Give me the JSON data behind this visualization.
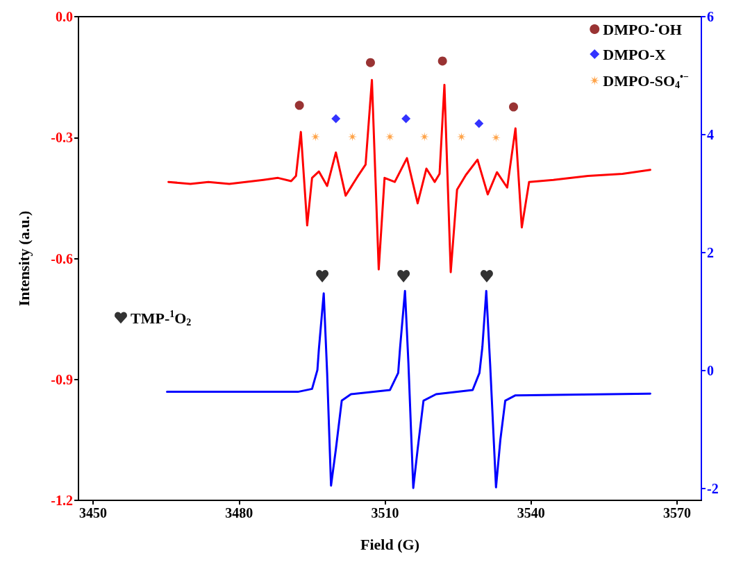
{
  "chart_data": {
    "type": "line",
    "xlabel": "Field (G)",
    "ylabel": "Intensity (a.u.)",
    "xlim": [
      3447,
      3575
    ],
    "xticks": [
      3450,
      3480,
      3510,
      3540,
      3570
    ],
    "ylim": [
      -1.2,
      0
    ],
    "yticks": [
      {
        "value": 0,
        "label": "0.0"
      },
      -0.3,
      -0.6,
      -0.9,
      -1.2
    ],
    "y2lim": [
      -2.2,
      6
    ],
    "y2ticks": [
      -2,
      0,
      2,
      4,
      6
    ],
    "grid": false,
    "legend": "top right",
    "marker": "none",
    "series": [
      {
        "color": "#ff0000",
        "x": [
          3465.5,
          3470,
          3473.7,
          3478,
          3485.0,
          3488,
          3490.7,
          3491.7,
          3492.7,
          3494.0,
          3495.0,
          3496.4,
          3498.1,
          3499.9,
          3501.9,
          3504.5,
          3506.0,
          3507.3,
          3508.7,
          3509.9,
          3512.0,
          3514.5,
          3516.7,
          3518.5,
          3520.2,
          3521.2,
          3522.2,
          3523.5,
          3524.8,
          3526.6,
          3529.0,
          3531.1,
          3533.0,
          3535.1,
          3536.8,
          3538.1,
          3539.6,
          3544.6,
          3551.7,
          3558.8,
          3564.5
        ],
        "values": [
          -0.41,
          -0.415,
          -0.41,
          -0.415,
          -0.405,
          -0.4,
          -0.408,
          -0.395,
          -0.286,
          -0.518,
          -0.4,
          -0.384,
          -0.42,
          -0.337,
          -0.444,
          -0.394,
          -0.367,
          -0.157,
          -0.627,
          -0.4,
          -0.41,
          -0.351,
          -0.463,
          -0.377,
          -0.41,
          -0.39,
          -0.169,
          -0.634,
          -0.429,
          -0.393,
          -0.355,
          -0.441,
          -0.386,
          -0.424,
          -0.277,
          -0.523,
          -0.41,
          -0.405,
          -0.395,
          -0.39,
          -0.38
        ]
      },
      {
        "color": "#0000ff",
        "axis": "y2",
        "x": [
          3465.2,
          3492.1,
          3495.0,
          3496.1,
          3496.4,
          3497.4,
          3498.1,
          3498.9,
          3499.9,
          3501.1,
          3503.0,
          3511.0,
          3512.7,
          3513.1,
          3514.1,
          3514.8,
          3515.8,
          3516.7,
          3517.9,
          3520.5,
          3528.0,
          3529.4,
          3530.0,
          3530.8,
          3531.6,
          3532.8,
          3533.7,
          3534.7,
          3536.8,
          3564.5
        ],
        "values": [
          -0.36,
          -0.36,
          -0.31,
          0.01,
          0.36,
          1.31,
          -0.04,
          -1.95,
          -1.33,
          -0.51,
          -0.4,
          -0.33,
          -0.04,
          0.4,
          1.35,
          0.13,
          -1.99,
          -1.33,
          -0.51,
          -0.4,
          -0.33,
          -0.04,
          0.4,
          1.35,
          0.1,
          -1.98,
          -1.17,
          -0.51,
          -0.42,
          -0.39
        ]
      },
      {
        "type": "scatter",
        "name": "DMPO-$^{•}$OH",
        "color": "#800000",
        "marker": "circle",
        "x": [
          3492.4,
          3507.0,
          3521.8,
          3536.4
        ],
        "values": [
          -0.22,
          -0.114,
          -0.11,
          -0.224
        ]
      },
      {
        "type": "scatter",
        "name": "DMPO-X",
        "color": "#0000ff",
        "marker": "diamond",
        "x": [
          3499.9,
          3514.3,
          3529.3
        ],
        "values": [
          -0.253,
          -0.253,
          -0.265
        ]
      },
      {
        "type": "scatter",
        "name": "DMPO-SO$_{4}$$^{•−}$",
        "color": "#ff8c1a",
        "marker": "star",
        "x": [
          3495.7,
          3503.3,
          3511.0,
          3518.1,
          3525.7,
          3532.8
        ],
        "values": [
          -0.298,
          -0.298,
          -0.298,
          -0.298,
          -0.298,
          -0.3
        ]
      },
      {
        "type": "scatter",
        "name": "TMP-$^{1}$O$_{2}$",
        "color": "#000000",
        "axis": "y2",
        "x": [
          3497.1,
          3513.8,
          3530.9
        ],
        "values": [
          1.6,
          1.6,
          1.6
        ]
      }
    ]
  }
}
